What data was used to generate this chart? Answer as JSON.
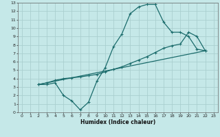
{
  "xlabel": "Humidex (Indice chaleur)",
  "bg_color": "#c5e8e8",
  "grid_color": "#aacfcf",
  "line_color": "#1a6b6b",
  "xlim": [
    -0.5,
    23.5
  ],
  "ylim": [
    0,
    13
  ],
  "xticks": [
    0,
    1,
    2,
    3,
    4,
    5,
    6,
    7,
    8,
    9,
    10,
    11,
    12,
    13,
    14,
    15,
    16,
    17,
    18,
    19,
    20,
    21,
    22,
    23
  ],
  "yticks": [
    0,
    1,
    2,
    3,
    4,
    5,
    6,
    7,
    8,
    9,
    10,
    11,
    12,
    13
  ],
  "line1_x": [
    2,
    3,
    4,
    5,
    6,
    7,
    8,
    9,
    10,
    11,
    12,
    13,
    14,
    15,
    16,
    17,
    18,
    19,
    20,
    21,
    22
  ],
  "line1_y": [
    3.3,
    3.3,
    3.5,
    2.0,
    1.35,
    0.3,
    1.2,
    3.7,
    5.3,
    7.8,
    9.3,
    11.7,
    12.5,
    12.8,
    12.8,
    10.7,
    9.5,
    9.5,
    9.0,
    7.5,
    7.3
  ],
  "line2_x": [
    2,
    3,
    4,
    5,
    6,
    7,
    8,
    9,
    10,
    11,
    12,
    13,
    14,
    15,
    16,
    17,
    18,
    19,
    20,
    21,
    22
  ],
  "line2_y": [
    3.3,
    3.5,
    3.8,
    4.0,
    4.1,
    4.2,
    4.35,
    4.5,
    4.8,
    5.1,
    5.4,
    5.8,
    6.2,
    6.6,
    7.1,
    7.6,
    7.9,
    8.1,
    9.5,
    9.0,
    7.3
  ],
  "line3_x": [
    2,
    22
  ],
  "line3_y": [
    3.3,
    7.3
  ]
}
